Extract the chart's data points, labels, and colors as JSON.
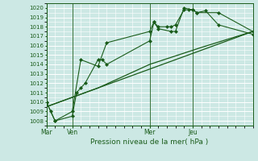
{
  "xlabel": "Pression niveau de la mer( hPa )",
  "bg_color": "#cce8e4",
  "grid_color": "#ffffff",
  "line_color": "#1a5c1a",
  "ylim": [
    1007.5,
    1020.5
  ],
  "yticks": [
    1008,
    1009,
    1010,
    1011,
    1012,
    1013,
    1014,
    1015,
    1016,
    1017,
    1018,
    1019,
    1020
  ],
  "xtick_labels": [
    "Mar",
    "Ven",
    "Mer",
    "Jeu"
  ],
  "xtick_positions": [
    0,
    24,
    96,
    136
  ],
  "xlim": [
    0,
    192
  ],
  "vline_positions": [
    0,
    24,
    96,
    136
  ],
  "series1_x": [
    0,
    4,
    8,
    24,
    28,
    32,
    36,
    48,
    52,
    56,
    96,
    100,
    104,
    112,
    116,
    120,
    128,
    132,
    136,
    140,
    148,
    160,
    192
  ],
  "series1_y": [
    1010,
    1009,
    1008,
    1008.5,
    1011,
    1011.5,
    1012,
    1014.5,
    1014.5,
    1014,
    1016.5,
    1018.5,
    1018,
    1018,
    1018,
    1018.2,
    1019.8,
    1019.8,
    1019.8,
    1019.5,
    1019.7,
    1018.2,
    1017.2
  ],
  "series2_x": [
    0,
    8,
    24,
    32,
    48,
    56,
    96,
    100,
    104,
    116,
    120,
    128,
    136,
    140,
    160,
    192
  ],
  "series2_y": [
    1010,
    1008,
    1009,
    1014.5,
    1013.8,
    1016.3,
    1017.5,
    1018.5,
    1017.8,
    1017.5,
    1017.5,
    1020.0,
    1019.8,
    1019.5,
    1019.5,
    1017.5
  ],
  "series3_x": [
    0,
    192
  ],
  "series3_y": [
    1009.5,
    1017.5
  ],
  "series4_x": [
    0,
    48,
    96,
    144,
    192
  ],
  "series4_y": [
    1009.5,
    1011.5,
    1014.0,
    1015.8,
    1017.5
  ]
}
